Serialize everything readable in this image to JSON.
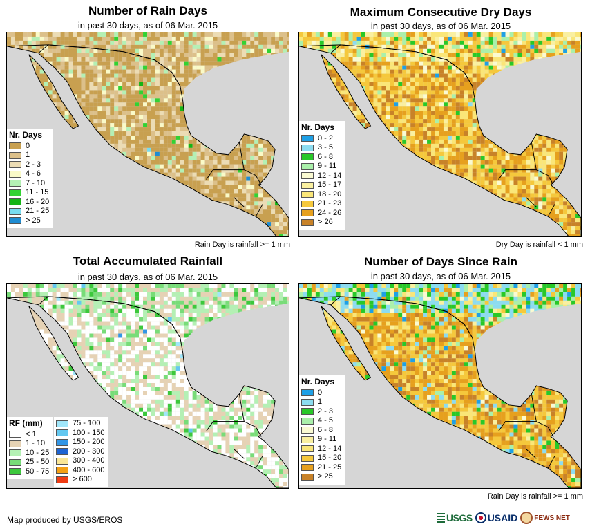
{
  "panels": [
    {
      "title": "Number of Rain Days",
      "subtitle": "in past 30 days, as of 06 Mar. 2015",
      "legend_title": "Nr. Days",
      "legend": [
        {
          "label": "0",
          "color": "#c8a050"
        },
        {
          "label": "1",
          "color": "#dcc08a"
        },
        {
          "label": "2 - 3",
          "color": "#ecdcb4"
        },
        {
          "label": "4 - 6",
          "color": "#fafac8"
        },
        {
          "label": "7 - 10",
          "color": "#b4f0b4"
        },
        {
          "label": "11 - 15",
          "color": "#32d232"
        },
        {
          "label": "16 - 20",
          "color": "#14b414"
        },
        {
          "label": "21 - 25",
          "color": "#78dcf0"
        },
        {
          "label": "> 25",
          "color": "#1e8cd2"
        }
      ],
      "note": "Rain Day is rainfall >= 1 mm"
    },
    {
      "title": "Maximum Consecutive Dry Days",
      "subtitle": "in past 30 days, as of 06 Mar. 2015",
      "legend_title": "Nr. Days",
      "legend": [
        {
          "label": "0 - 2",
          "color": "#1ea0e6"
        },
        {
          "label": "3 - 5",
          "color": "#8cdcf0"
        },
        {
          "label": "6 - 8",
          "color": "#28c828"
        },
        {
          "label": "9 - 11",
          "color": "#aaf0aa"
        },
        {
          "label": "12 - 14",
          "color": "#fafad2"
        },
        {
          "label": "15 - 17",
          "color": "#faf0a0"
        },
        {
          "label": "18 - 20",
          "color": "#fae678"
        },
        {
          "label": "21 - 23",
          "color": "#f5c83c"
        },
        {
          "label": "24 - 26",
          "color": "#e6a01e"
        },
        {
          "label": "> 26",
          "color": "#c88228"
        }
      ],
      "note": "Dry Day is rainfall < 1 mm"
    },
    {
      "title": "Total Accumulated Rainfall",
      "subtitle": "in past 30 days, as of 06 Mar. 2015",
      "legend_title": "RF (mm)",
      "legend": [
        {
          "label": "< 1",
          "color": "#ffffff"
        },
        {
          "label": "1 - 10",
          "color": "#e6d2b4"
        },
        {
          "label": "10 - 25",
          "color": "#b4f0b4"
        },
        {
          "label": "25 - 50",
          "color": "#78dc78"
        },
        {
          "label": "50 - 75",
          "color": "#3cc83c"
        }
      ],
      "legend2": [
        {
          "label": "75 - 100",
          "color": "#a0e6fa"
        },
        {
          "label": "100 - 150",
          "color": "#64c8f0"
        },
        {
          "label": "150 - 200",
          "color": "#3296e6"
        },
        {
          "label": "200 - 300",
          "color": "#1e64d2"
        },
        {
          "label": "300 - 400",
          "color": "#fae696"
        },
        {
          "label": "400 - 600",
          "color": "#f5a014"
        },
        {
          "label": "> 600",
          "color": "#f03c14"
        }
      ],
      "note": ""
    },
    {
      "title": "Number of Days Since Rain",
      "subtitle": "in past 30 days, as of 06 Mar. 2015",
      "legend_title": "Nr. Days",
      "legend": [
        {
          "label": "0",
          "color": "#1ea0e6"
        },
        {
          "label": "1",
          "color": "#8cdcf0"
        },
        {
          "label": "2 - 3",
          "color": "#28c828"
        },
        {
          "label": "4 - 5",
          "color": "#aaf0aa"
        },
        {
          "label": "6 - 8",
          "color": "#fafad2"
        },
        {
          "label": "9 - 11",
          "color": "#faf0a0"
        },
        {
          "label": "12 - 14",
          "color": "#fae678"
        },
        {
          "label": "15 - 20",
          "color": "#f5c83c"
        },
        {
          "label": "21 - 25",
          "color": "#e6a01e"
        },
        {
          "label": "> 25",
          "color": "#c88228"
        }
      ],
      "note": "Rain Day is rainfall >= 1 mm"
    }
  ],
  "credit": "Map produced by USGS/EROS",
  "logos": {
    "usgs": "USGS",
    "usaid": "USAID",
    "fews": "FEWS NET"
  },
  "colors": {
    "ocean": "#d6d6d6",
    "border": "#000000"
  }
}
